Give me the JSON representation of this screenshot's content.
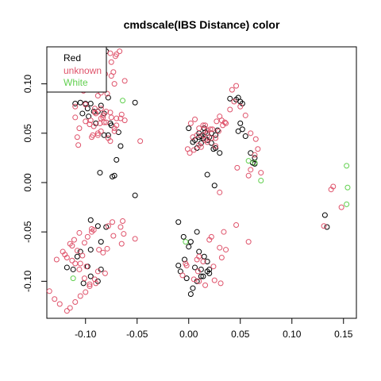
{
  "chart_data": {
    "type": "scatter",
    "title": "cmdscale(IBS Distance) color",
    "xlabel": "",
    "ylabel": "",
    "xlim": [
      -0.1375,
      0.1625
    ],
    "ylim": [
      -0.1375,
      0.1375
    ],
    "x_ticks": [
      -0.1,
      -0.05,
      0.0,
      0.05,
      0.1,
      0.15
    ],
    "x_tick_labels": [
      "-0.10",
      "-0.05",
      "0.00",
      "0.05",
      "0.10",
      "0.15"
    ],
    "y_ticks": [
      -0.1,
      -0.05,
      0.0,
      0.05,
      0.1
    ],
    "y_tick_labels": [
      "-0.10",
      "-0.05",
      "0.00",
      "0.05",
      "0.10"
    ],
    "grid": false,
    "legend_position": "top-left",
    "series": [
      {
        "name": "Red",
        "color": "#000000",
        "x": [
          -0.105,
          -0.1,
          -0.095,
          -0.098,
          -0.11,
          -0.092,
          -0.088,
          -0.085,
          -0.103,
          -0.078,
          -0.08,
          -0.052,
          -0.082,
          -0.097,
          -0.09,
          -0.075,
          -0.068,
          -0.078,
          -0.066,
          -0.052,
          -0.095,
          -0.088,
          -0.085,
          -0.105,
          -0.108,
          -0.098,
          -0.112,
          -0.095,
          -0.085,
          -0.088,
          -0.118,
          -0.102,
          -0.08,
          -0.095,
          -0.082,
          -0.072,
          -0.07,
          -0.074,
          -0.086,
          -0.076,
          0.0,
          0.01,
          0.016,
          0.02,
          0.014,
          0.018,
          0.012,
          0.022,
          0.008,
          0.024,
          0.026,
          0.018,
          0.015,
          0.03,
          0.004,
          0.006,
          0.014,
          0.026,
          0.028,
          0.01,
          0.022,
          0.012,
          0.052,
          0.048,
          0.055,
          0.06,
          0.064,
          0.064,
          0.062,
          0.048,
          0.05,
          0.052,
          0.046,
          0.04,
          0.05,
          0.025,
          0.018,
          -0.01,
          -0.005,
          0.0,
          0.01,
          0.015,
          0.018,
          0.02,
          0.014,
          0.008,
          0.004,
          0.002,
          -0.004,
          -0.01,
          -0.008,
          -0.002,
          0.006,
          0.012,
          0.012,
          0.018,
          0.02,
          0.002,
          0.008,
          0.134,
          0.132
        ],
        "y": [
          0.081,
          0.08,
          0.08,
          0.075,
          0.08,
          0.072,
          0.072,
          0.078,
          0.07,
          0.086,
          0.133,
          0.081,
          0.07,
          0.067,
          0.06,
          0.058,
          0.051,
          0.048,
          0.037,
          -0.013,
          -0.038,
          -0.044,
          -0.06,
          -0.07,
          -0.075,
          -0.085,
          -0.088,
          -0.095,
          -0.088,
          -0.1,
          -0.086,
          -0.102,
          -0.045,
          -0.068,
          0.048,
          0.007,
          0.023,
          0.006,
          0.01,
          0.06,
          0.055,
          0.05,
          0.051,
          0.046,
          0.045,
          0.043,
          0.04,
          0.04,
          0.035,
          0.034,
          0.035,
          0.05,
          0.055,
          0.03,
          0.041,
          0.043,
          0.048,
          0.048,
          0.053,
          0.046,
          0.05,
          0.047,
          0.054,
          0.052,
          0.047,
          0.03,
          0.025,
          0.019,
          0.02,
          0.086,
          0.082,
          0.08,
          0.084,
          0.085,
          0.06,
          -0.003,
          0.008,
          -0.04,
          -0.055,
          -0.065,
          -0.07,
          -0.075,
          -0.08,
          -0.088,
          -0.095,
          -0.1,
          -0.107,
          -0.113,
          -0.078,
          -0.084,
          -0.09,
          -0.097,
          -0.086,
          -0.088,
          -0.095,
          -0.09,
          -0.092,
          -0.06,
          -0.05,
          -0.045,
          -0.033
        ],
        "marker": "open-circle"
      },
      {
        "name": "unknown",
        "color": "#DF536B",
        "x": [
          -0.09,
          -0.093,
          -0.099,
          -0.102,
          -0.104,
          -0.088,
          -0.085,
          -0.079,
          -0.081,
          -0.086,
          -0.073,
          -0.075,
          -0.07,
          -0.091,
          -0.09,
          -0.083,
          -0.08,
          -0.075,
          -0.07,
          -0.065,
          -0.085,
          -0.11,
          -0.1,
          -0.091,
          -0.095,
          -0.086,
          -0.082,
          -0.092,
          -0.085,
          -0.088,
          -0.093,
          -0.096,
          -0.1,
          -0.11,
          -0.106,
          -0.108,
          -0.078,
          -0.076,
          -0.072,
          -0.07,
          -0.066,
          -0.062,
          -0.095,
          -0.087,
          -0.072,
          -0.076,
          -0.071,
          -0.075,
          -0.067,
          -0.062,
          -0.08,
          -0.083,
          -0.076,
          -0.072,
          -0.088,
          -0.094,
          -0.107,
          -0.047,
          -0.085,
          -0.128,
          -0.122,
          -0.118,
          -0.113,
          -0.105,
          -0.101,
          -0.106,
          -0.111,
          -0.098,
          -0.092,
          -0.094,
          -0.087,
          -0.083,
          -0.079,
          -0.065,
          -0.074,
          -0.052,
          -0.078,
          -0.063,
          -0.094,
          -0.115,
          -0.108,
          -0.103,
          -0.099,
          -0.088,
          -0.09,
          -0.096,
          -0.101,
          -0.106,
          -0.11,
          -0.113,
          -0.12,
          -0.135,
          -0.13,
          -0.125,
          -0.118,
          -0.115,
          -0.11,
          -0.105,
          -0.1,
          -0.096,
          -0.091,
          -0.081,
          -0.073,
          -0.066,
          -0.064,
          0.002,
          0.006,
          0.01,
          0.014,
          0.018,
          0.023,
          0.027,
          0.03,
          0.035,
          0.008,
          0.016,
          0.018,
          0.022,
          0.026,
          0.012,
          0.01,
          0.005,
          0.001,
          -0.001,
          0.004,
          0.014,
          0.018,
          0.021,
          0.016,
          0.026,
          0.029,
          0.032,
          0.036,
          0.033,
          0.042,
          0.046,
          0.044,
          0.04,
          0.05,
          0.055,
          0.06,
          0.065,
          0.067,
          0.064,
          0.07,
          0.06,
          0.058,
          0.047,
          0.03,
          0.046,
          0.034,
          0.036,
          0.01,
          0.014,
          0.024,
          0.03,
          0.032,
          0.02,
          0.022,
          0.008,
          -0.003,
          -0.006,
          0.009,
          0.025,
          0.031,
          0.005,
          -0.002,
          0.01,
          0.016,
          0.058,
          0.138,
          0.14,
          0.131,
          0.148
        ],
        "y": [
          0.12,
          0.126,
          0.106,
          0.093,
          0.095,
          0.088,
          0.091,
          0.09,
          0.11,
          0.115,
          0.112,
          0.108,
          0.13,
          0.075,
          0.07,
          0.068,
          0.072,
          0.066,
          0.065,
          0.069,
          0.065,
          0.077,
          0.079,
          0.071,
          0.063,
          0.06,
          0.061,
          0.057,
          0.052,
          0.05,
          0.048,
          0.059,
          0.062,
          0.066,
          0.055,
          0.046,
          0.045,
          0.042,
          0.055,
          0.058,
          0.065,
          0.063,
          0.098,
          0.097,
          0.1,
          0.131,
          0.128,
          0.122,
          0.133,
          0.103,
          0.061,
          0.066,
          0.071,
          0.052,
          0.048,
          0.046,
          0.038,
          0.042,
          0.075,
          -0.078,
          -0.07,
          -0.076,
          -0.064,
          -0.082,
          -0.061,
          -0.051,
          -0.058,
          -0.055,
          -0.048,
          -0.047,
          -0.068,
          -0.071,
          -0.067,
          -0.062,
          -0.04,
          -0.057,
          -0.044,
          -0.052,
          -0.05,
          -0.062,
          -0.069,
          -0.074,
          -0.085,
          -0.09,
          -0.102,
          -0.103,
          -0.097,
          -0.088,
          -0.082,
          -0.079,
          -0.073,
          -0.11,
          -0.118,
          -0.123,
          -0.13,
          -0.127,
          -0.121,
          -0.115,
          -0.111,
          -0.105,
          -0.098,
          -0.092,
          -0.054,
          -0.045,
          -0.039,
          0.06,
          0.064,
          0.055,
          0.058,
          0.053,
          0.054,
          0.062,
          0.067,
          0.061,
          0.048,
          0.043,
          0.041,
          0.045,
          0.037,
          0.036,
          0.038,
          0.033,
          0.03,
          0.034,
          0.046,
          0.048,
          0.05,
          0.054,
          0.058,
          0.045,
          0.052,
          0.063,
          0.06,
          0.058,
          0.094,
          0.098,
          0.082,
          0.074,
          0.077,
          0.068,
          0.05,
          0.044,
          0.034,
          0.028,
          0.01,
          0.013,
          0.007,
          0.015,
          -0.01,
          -0.043,
          -0.05,
          -0.068,
          -0.075,
          -0.08,
          -0.085,
          -0.066,
          -0.076,
          -0.058,
          -0.055,
          -0.078,
          -0.082,
          -0.094,
          -0.09,
          -0.099,
          -0.102,
          -0.098,
          -0.084,
          -0.1,
          -0.104,
          -0.06,
          -0.007,
          -0.004,
          -0.044,
          -0.025
        ],
        "marker": "open-circle"
      },
      {
        "name": "White",
        "color": "#61D04F",
        "x": [
          -0.064,
          0.058,
          0.064,
          0.07,
          -0.112,
          -0.003,
          0.153,
          0.154,
          0.153
        ],
        "y": [
          0.083,
          0.022,
          0.02,
          0.002,
          -0.097,
          -0.06,
          0.017,
          -0.005,
          -0.022
        ],
        "marker": "open-circle"
      }
    ]
  }
}
